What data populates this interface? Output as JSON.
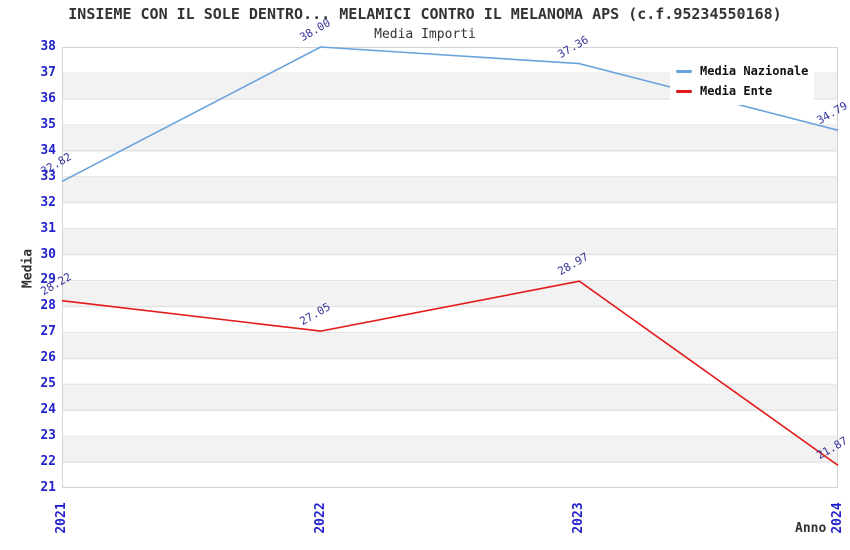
{
  "chart_data": {
    "type": "line",
    "title": "INSIEME CON IL SOLE DENTRO... MELAMICI CONTRO IL MELANOMA APS (c.f.95234550168)",
    "subtitle": "Media Importi",
    "xlabel": "Anno",
    "ylabel": "Media",
    "categories": [
      "2021",
      "2022",
      "2023",
      "2024"
    ],
    "series": [
      {
        "name": "Media Nazionale",
        "color": "#69a3dc",
        "values": [
          32.82,
          38.0,
          37.36,
          34.79
        ]
      },
      {
        "name": "Media Ente",
        "color": "#e31a1a",
        "values": [
          28.22,
          27.05,
          28.97,
          21.87
        ]
      }
    ],
    "ylim": [
      21,
      38
    ],
    "y_ticks": [
      21,
      22,
      23,
      24,
      25,
      26,
      27,
      28,
      29,
      30,
      31,
      32,
      33,
      34,
      35,
      36,
      37,
      38
    ],
    "grid": true,
    "legend_position": "top-right",
    "colors": {
      "tick_labels": "#2222cc",
      "data_labels": "#333399",
      "gridline": "#e0e0e0",
      "plot_border": "#d4d4d4",
      "band_alt": "#f2f2f2",
      "text": "#333333"
    }
  }
}
